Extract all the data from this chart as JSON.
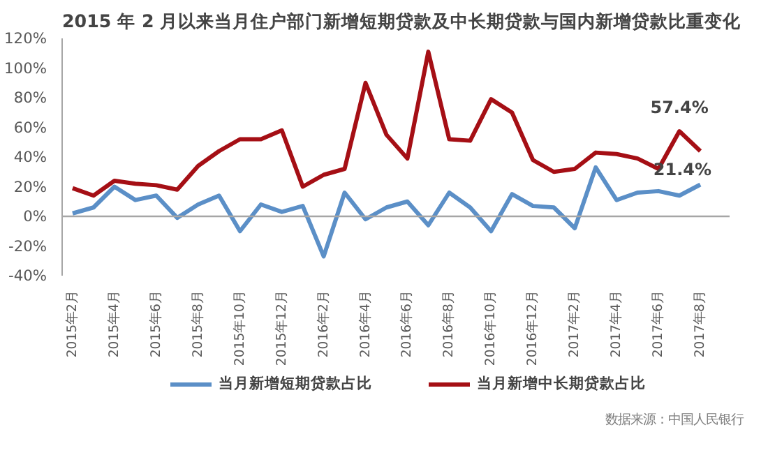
{
  "chart_data": {
    "type": "line",
    "title": "2015 年 2 月以来当月住户部门新增短期贷款及中长期贷款与国内新增贷款比重变化",
    "categories": [
      "2015年2月",
      null,
      "2015年4月",
      null,
      "2015年6月",
      null,
      "2015年8月",
      null,
      "2015年10月",
      null,
      "2015年12月",
      null,
      "2016年2月",
      null,
      "2016年4月",
      null,
      "2016年6月",
      null,
      "2016年8月",
      null,
      "2016年10月",
      null,
      "2016年12月",
      null,
      "2017年2月",
      null,
      "2017年4月",
      null,
      "2017年6月",
      null,
      "2017年8月"
    ],
    "series": [
      {
        "name": "当月新增短期贷款占比",
        "color": "#5b8fc7",
        "values": [
          2,
          6,
          20,
          11,
          14,
          -1,
          8,
          14,
          -10,
          8,
          3,
          7,
          -27,
          16,
          -2,
          6,
          10,
          -6,
          16,
          6,
          -10,
          15,
          7,
          6,
          -8,
          33,
          11,
          16,
          17,
          14,
          21.4
        ],
        "value_labels": [
          null,
          null,
          null,
          null,
          null,
          null,
          null,
          null,
          null,
          null,
          null,
          null,
          null,
          null,
          null,
          null,
          null,
          null,
          null,
          null,
          null,
          null,
          null,
          null,
          null,
          null,
          null,
          null,
          null,
          null,
          "21.4%"
        ]
      },
      {
        "name": "当月新增中长期贷款占比",
        "color": "#a50f15",
        "values": [
          19,
          14,
          24,
          22,
          21,
          18,
          34,
          44,
          52,
          52,
          58,
          20,
          28,
          32,
          90,
          55,
          39,
          111,
          52,
          51,
          79,
          70,
          38,
          30,
          32,
          43,
          42,
          39,
          32,
          57.4,
          44
        ],
        "value_labels": [
          null,
          null,
          null,
          null,
          null,
          null,
          null,
          null,
          null,
          null,
          null,
          null,
          null,
          null,
          null,
          null,
          null,
          null,
          null,
          null,
          null,
          null,
          null,
          null,
          null,
          null,
          null,
          null,
          null,
          "57.4%",
          null
        ]
      }
    ],
    "ylim": [
      -40,
      120
    ],
    "yticks": [
      {
        "value": -40,
        "label": "-40%"
      },
      {
        "value": -20,
        "label": "-20%"
      },
      {
        "value": 0,
        "label": "0%"
      },
      {
        "value": 20,
        "label": "20%"
      },
      {
        "value": 40,
        "label": "40%"
      },
      {
        "value": 60,
        "label": "60%"
      },
      {
        "value": 80,
        "label": "80%"
      },
      {
        "value": 100,
        "label": "100%"
      },
      {
        "value": 120,
        "label": "120%"
      }
    ],
    "ref_lines": [
      {
        "axis": "y",
        "value": 0,
        "color": "#a6a6a6"
      }
    ],
    "grid": false,
    "legend": "bottom",
    "marker": "none",
    "line_style": "solid",
    "annotations": [
      "数据来源：中国人民银行"
    ]
  }
}
